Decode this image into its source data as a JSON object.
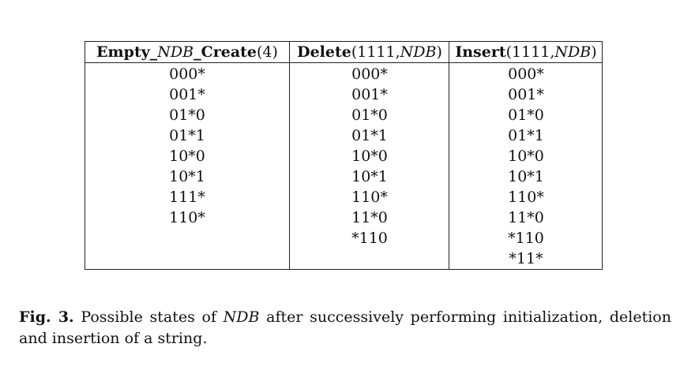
{
  "table": {
    "columns": [
      {
        "header_bold": "Empty_",
        "header_italic": "NDB",
        "header_bold2": "_Create",
        "header_plain": "(4)",
        "cells": [
          "000*",
          "001*",
          "01*0",
          "01*1",
          "10*0",
          "10*1",
          "111*",
          "110*"
        ]
      },
      {
        "header_bold": "Delete",
        "header_plain": "(1111,",
        "header_italic": "NDB",
        "header_plain2": ")",
        "cells": [
          "000*",
          "001*",
          "01*0",
          "01*1",
          "10*0",
          "10*1",
          "110*",
          "11*0",
          "*110"
        ]
      },
      {
        "header_bold": "Insert",
        "header_plain": "(1111,",
        "header_italic": "NDB",
        "header_plain2": ")",
        "cells": [
          "000*",
          "001*",
          "01*0",
          "01*1",
          "10*0",
          "10*1",
          "110*",
          "11*0",
          "*110",
          "*11*"
        ]
      }
    ]
  },
  "caption": {
    "label": "Fig. 3.",
    "text_before": " Possible states of ",
    "text_italic": "NDB",
    "text_after": " after successively performing initialization, deletion and insertion of a string."
  }
}
